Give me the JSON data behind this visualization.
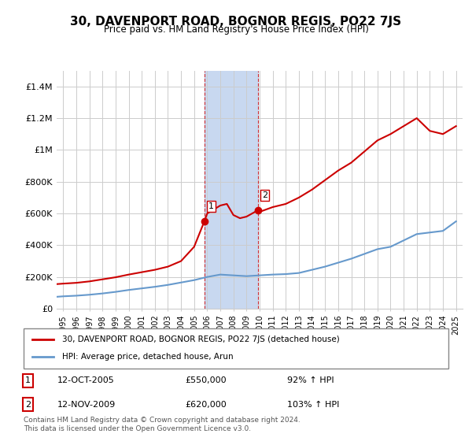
{
  "title": "30, DAVENPORT ROAD, BOGNOR REGIS, PO22 7JS",
  "subtitle": "Price paid vs. HM Land Registry's House Price Index (HPI)",
  "legend_label_red": "30, DAVENPORT ROAD, BOGNOR REGIS, PO22 7JS (detached house)",
  "legend_label_blue": "HPI: Average price, detached house, Arun",
  "footnote": "Contains HM Land Registry data © Crown copyright and database right 2024.\nThis data is licensed under the Open Government Licence v3.0.",
  "sale1_label": "1",
  "sale1_date": "12-OCT-2005",
  "sale1_price": "£550,000",
  "sale1_hpi": "92% ↑ HPI",
  "sale1_year": 2005.78,
  "sale1_value": 550000,
  "sale2_label": "2",
  "sale2_date": "12-NOV-2009",
  "sale2_price": "£620,000",
  "sale2_hpi": "103% ↑ HPI",
  "sale2_year": 2009.87,
  "sale2_value": 620000,
  "highlight_xmin": 2005.78,
  "highlight_xmax": 2009.87,
  "red_color": "#cc0000",
  "blue_color": "#6699cc",
  "highlight_color": "#c8d8f0",
  "grid_color": "#cccccc",
  "background_color": "#ffffff",
  "ylim_min": 0,
  "ylim_max": 1500000,
  "xlim_min": 1994.5,
  "xlim_max": 2025.5,
  "yticks": [
    0,
    200000,
    400000,
    600000,
    800000,
    1000000,
    1200000,
    1400000
  ],
  "ytick_labels": [
    "£0",
    "£200K",
    "£400K",
    "£600K",
    "£800K",
    "£1M",
    "£1.2M",
    "£1.4M"
  ],
  "xticks": [
    1995,
    1996,
    1997,
    1998,
    1999,
    2000,
    2001,
    2002,
    2003,
    2004,
    2005,
    2006,
    2007,
    2008,
    2009,
    2010,
    2011,
    2012,
    2013,
    2014,
    2015,
    2016,
    2017,
    2018,
    2019,
    2020,
    2021,
    2022,
    2023,
    2024,
    2025
  ],
  "red_years": [
    1994.5,
    1995,
    1996,
    1997,
    1998,
    1999,
    2000,
    2001,
    2002,
    2003,
    2004,
    2005,
    2005.78,
    2006,
    2007,
    2007.5,
    2008,
    2008.5,
    2009,
    2009.87,
    2010,
    2011,
    2012,
    2013,
    2014,
    2015,
    2016,
    2017,
    2018,
    2019,
    2020,
    2021,
    2022,
    2023,
    2024,
    2025
  ],
  "red_values": [
    155000,
    158000,
    163000,
    172000,
    185000,
    198000,
    215000,
    230000,
    245000,
    265000,
    300000,
    390000,
    550000,
    600000,
    650000,
    660000,
    590000,
    570000,
    580000,
    620000,
    610000,
    640000,
    660000,
    700000,
    750000,
    810000,
    870000,
    920000,
    990000,
    1060000,
    1100000,
    1150000,
    1200000,
    1120000,
    1100000,
    1150000
  ],
  "blue_years": [
    1994.5,
    1995,
    1996,
    1997,
    1998,
    1999,
    2000,
    2001,
    2002,
    2003,
    2004,
    2005,
    2006,
    2007,
    2008,
    2009,
    2010,
    2011,
    2012,
    2013,
    2014,
    2015,
    2016,
    2017,
    2018,
    2019,
    2020,
    2021,
    2022,
    2023,
    2024,
    2025
  ],
  "blue_values": [
    75000,
    78000,
    82000,
    88000,
    96000,
    106000,
    118000,
    128000,
    138000,
    150000,
    165000,
    180000,
    200000,
    215000,
    210000,
    205000,
    210000,
    215000,
    218000,
    225000,
    245000,
    265000,
    290000,
    315000,
    345000,
    375000,
    390000,
    430000,
    470000,
    480000,
    490000,
    550000
  ]
}
